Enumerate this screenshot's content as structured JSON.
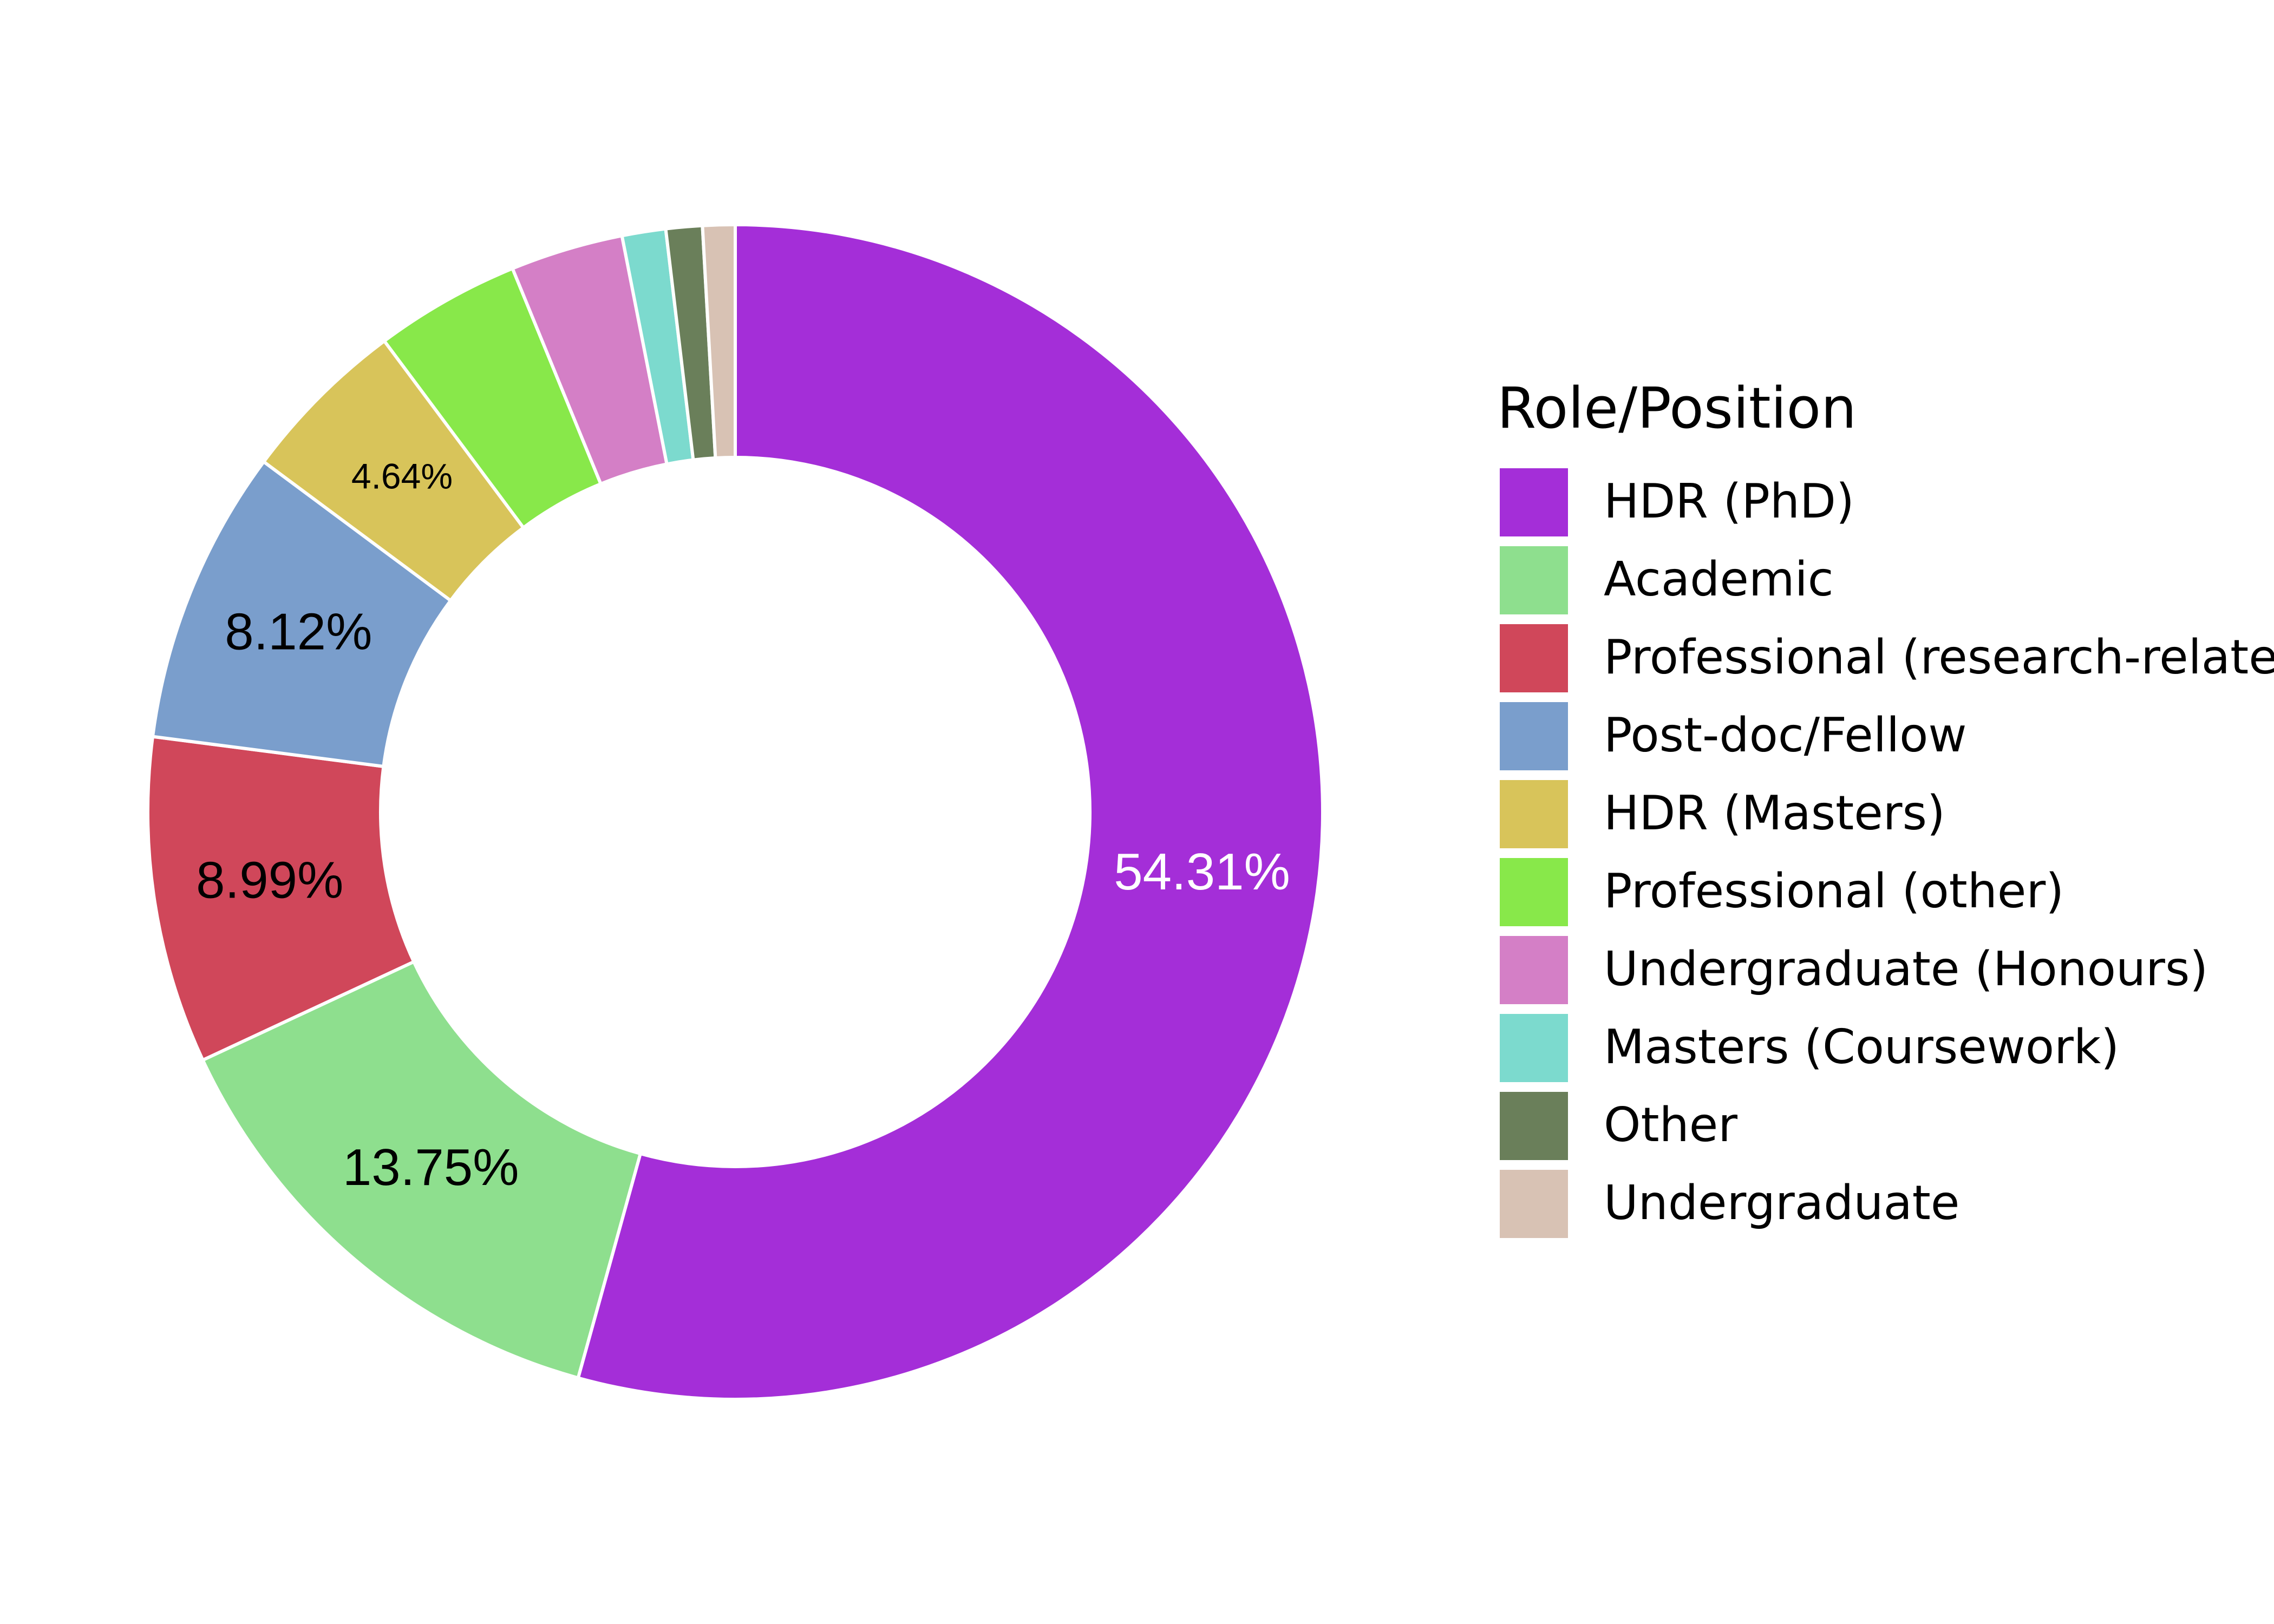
{
  "chart_data": {
    "type": "pie",
    "variant": "donut",
    "legend_title": "Role/Position",
    "legend_position": "right",
    "slices": [
      {
        "label": "HDR (PhD)",
        "value": 54.31,
        "color": "#A42ED8",
        "data_label": "54.31%",
        "label_color": "#ffffff"
      },
      {
        "label": "Academic",
        "value": 13.75,
        "color": "#8EDF8E",
        "data_label": "13.75%",
        "label_color": "#000000"
      },
      {
        "label": "Professional (research-related)",
        "value": 8.99,
        "color": "#D0475A",
        "data_label": "8.99%",
        "label_color": "#000000"
      },
      {
        "label": "Post-doc/Fellow",
        "value": 8.12,
        "color": "#7A9ECC",
        "data_label": "8.12%",
        "label_color": "#000000"
      },
      {
        "label": "HDR (Masters)",
        "value": 4.64,
        "color": "#D8C45A",
        "data_label": "4.64%",
        "label_color": "#000000"
      },
      {
        "label": "Professional (other)",
        "value": 4.0,
        "color": "#88E84A",
        "data_label": "",
        "label_color": "#000000"
      },
      {
        "label": "Undergraduate (Honours)",
        "value": 3.1,
        "color": "#D47FC6",
        "data_label": "",
        "label_color": "#000000"
      },
      {
        "label": "Masters (Coursework)",
        "value": 1.2,
        "color": "#7CDACE",
        "data_label": "",
        "label_color": "#000000"
      },
      {
        "label": "Other",
        "value": 1.0,
        "color": "#6A7F5A",
        "data_label": "",
        "label_color": "#000000"
      },
      {
        "label": "Undergraduate",
        "value": 0.89,
        "color": "#D8C2B4",
        "data_label": "",
        "label_color": "#000000"
      }
    ]
  }
}
